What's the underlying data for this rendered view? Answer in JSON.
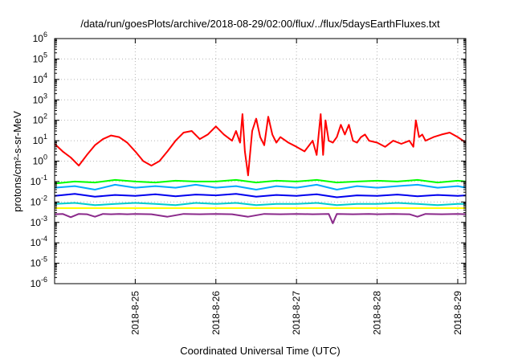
{
  "chart_data": {
    "type": "line",
    "title": "/data/run/goesPlots/archive/2018-08-29/02:00/flux/../flux/5daysEarthFluxes.txt",
    "xlabel": "Coordinated Universal Time (UTC)",
    "ylabel": "protons/cm²-s-sr-MeV",
    "y_scale": "log",
    "ylim": [
      1e-06,
      1000000.0
    ],
    "xlim": [
      24.0,
      29.1
    ],
    "grid": true,
    "y_ticks": [
      {
        "value": 1e-06,
        "base": "10",
        "exp": "-6"
      },
      {
        "value": 1e-05,
        "base": "10",
        "exp": "-5"
      },
      {
        "value": 0.0001,
        "base": "10",
        "exp": "-4"
      },
      {
        "value": 0.001,
        "base": "10",
        "exp": "-3"
      },
      {
        "value": 0.01,
        "base": "10",
        "exp": "-2"
      },
      {
        "value": 0.1,
        "base": "10",
        "exp": "-1"
      },
      {
        "value": 1.0,
        "base": "10",
        "exp": "0"
      },
      {
        "value": 10.0,
        "base": "10",
        "exp": "1"
      },
      {
        "value": 100.0,
        "base": "10",
        "exp": "2"
      },
      {
        "value": 1000.0,
        "base": "10",
        "exp": "3"
      },
      {
        "value": 10000.0,
        "base": "10",
        "exp": "4"
      },
      {
        "value": 100000.0,
        "base": "10",
        "exp": "5"
      },
      {
        "value": 1000000.0,
        "base": "10",
        "exp": "6"
      }
    ],
    "x_ticks": [
      {
        "value": 25,
        "label": "2018-8-25"
      },
      {
        "value": 26,
        "label": "2018-8-26"
      },
      {
        "value": 27,
        "label": "2018-8-27"
      },
      {
        "value": 28,
        "label": "2018-8-28"
      },
      {
        "value": 29,
        "label": "2018-8-29"
      }
    ],
    "x_unit": "day of August 2018 (UTC)",
    "series": [
      {
        "color": "#ff0000",
        "x": [
          24.0,
          24.1,
          24.2,
          24.3,
          24.4,
          24.5,
          24.6,
          24.7,
          24.8,
          24.9,
          25.0,
          25.1,
          25.2,
          25.3,
          25.4,
          25.5,
          25.6,
          25.7,
          25.8,
          25.9,
          26.0,
          26.1,
          26.2,
          26.25,
          26.3,
          26.33,
          26.36,
          26.4,
          26.45,
          26.5,
          26.55,
          26.6,
          26.65,
          26.7,
          26.75,
          26.8,
          26.9,
          27.0,
          27.1,
          27.2,
          27.25,
          27.3,
          27.33,
          27.36,
          27.4,
          27.45,
          27.5,
          27.55,
          27.6,
          27.65,
          27.7,
          27.75,
          27.8,
          27.85,
          27.9,
          28.0,
          28.1,
          28.2,
          28.3,
          28.4,
          28.45,
          28.48,
          28.52,
          28.56,
          28.6,
          28.7,
          28.8,
          28.9,
          29.0,
          29.1
        ],
        "y": [
          7,
          3,
          1.5,
          0.6,
          2,
          6,
          12,
          18,
          15,
          8,
          3,
          1,
          0.6,
          1,
          3,
          10,
          25,
          30,
          12,
          20,
          50,
          20,
          10,
          30,
          8,
          200,
          3,
          0.2,
          30,
          120,
          15,
          6,
          150,
          20,
          8,
          15,
          8,
          5,
          3,
          10,
          2,
          200,
          2,
          100,
          10,
          8,
          15,
          60,
          20,
          60,
          10,
          8,
          15,
          20,
          10,
          8,
          5,
          10,
          7,
          10,
          5,
          100,
          15,
          20,
          10,
          15,
          20,
          25,
          15,
          8
        ]
      },
      {
        "color": "#00ff00",
        "x": [
          24.0,
          24.25,
          24.5,
          24.75,
          25.0,
          25.25,
          25.5,
          25.75,
          26.0,
          26.25,
          26.5,
          26.75,
          27.0,
          27.25,
          27.5,
          27.75,
          28.0,
          28.25,
          28.5,
          28.75,
          29.0,
          29.1
        ],
        "y": [
          0.08,
          0.1,
          0.09,
          0.12,
          0.1,
          0.09,
          0.11,
          0.1,
          0.1,
          0.12,
          0.09,
          0.11,
          0.1,
          0.12,
          0.09,
          0.1,
          0.11,
          0.1,
          0.12,
          0.09,
          0.11,
          0.1
        ]
      },
      {
        "color": "#00aaff",
        "x": [
          24.0,
          24.25,
          24.5,
          24.75,
          25.0,
          25.25,
          25.5,
          25.75,
          26.0,
          26.25,
          26.5,
          26.75,
          27.0,
          27.25,
          27.5,
          27.75,
          28.0,
          28.25,
          28.5,
          28.75,
          29.0,
          29.1
        ],
        "y": [
          0.05,
          0.06,
          0.04,
          0.07,
          0.05,
          0.06,
          0.05,
          0.07,
          0.05,
          0.06,
          0.04,
          0.06,
          0.05,
          0.07,
          0.04,
          0.06,
          0.05,
          0.06,
          0.07,
          0.05,
          0.06,
          0.05
        ]
      },
      {
        "color": "#0000ee",
        "x": [
          24.0,
          24.25,
          24.5,
          24.75,
          25.0,
          25.25,
          25.5,
          25.75,
          26.0,
          26.25,
          26.5,
          26.75,
          27.0,
          27.25,
          27.5,
          27.75,
          28.0,
          28.25,
          28.5,
          28.75,
          29.0,
          29.1
        ],
        "y": [
          0.02,
          0.025,
          0.018,
          0.022,
          0.02,
          0.024,
          0.019,
          0.023,
          0.021,
          0.025,
          0.018,
          0.022,
          0.02,
          0.024,
          0.017,
          0.021,
          0.02,
          0.023,
          0.019,
          0.022,
          0.02,
          0.021
        ]
      },
      {
        "color": "#00cccc",
        "x": [
          24.0,
          24.25,
          24.5,
          24.75,
          25.0,
          25.25,
          25.5,
          25.75,
          26.0,
          26.25,
          26.5,
          26.75,
          27.0,
          27.25,
          27.5,
          27.75,
          28.0,
          28.25,
          28.5,
          28.75,
          29.0,
          29.1
        ],
        "y": [
          0.008,
          0.009,
          0.007,
          0.008,
          0.009,
          0.008,
          0.007,
          0.009,
          0.008,
          0.009,
          0.007,
          0.008,
          0.008,
          0.009,
          0.007,
          0.008,
          0.008,
          0.009,
          0.008,
          0.007,
          0.008,
          0.008
        ]
      },
      {
        "color": "#ffff00",
        "x": [
          24.0,
          24.25,
          24.5,
          24.75,
          25.0,
          25.25,
          25.5,
          25.75,
          26.0,
          26.25,
          26.5,
          26.75,
          27.0,
          27.25,
          27.5,
          27.75,
          28.0,
          28.25,
          28.5,
          28.75,
          29.0,
          29.1
        ],
        "y": [
          0.005,
          0.005,
          0.005,
          0.005,
          0.005,
          0.005,
          0.005,
          0.005,
          0.005,
          0.005,
          0.005,
          0.005,
          0.005,
          0.005,
          0.005,
          0.005,
          0.005,
          0.005,
          0.005,
          0.005,
          0.005,
          0.005
        ]
      },
      {
        "color": "#8b2a8b",
        "x": [
          24.0,
          24.1,
          24.2,
          24.3,
          24.4,
          24.5,
          24.6,
          24.7,
          24.8,
          24.9,
          25.0,
          25.2,
          25.4,
          25.6,
          25.8,
          26.0,
          26.2,
          26.4,
          26.6,
          26.8,
          27.0,
          27.2,
          27.4,
          27.45,
          27.5,
          27.7,
          27.9,
          28.0,
          28.2,
          28.4,
          28.5,
          28.6,
          28.8,
          29.0,
          29.1
        ],
        "y": [
          0.0025,
          0.0026,
          0.0018,
          0.0026,
          0.0025,
          0.0019,
          0.0026,
          0.0025,
          0.0026,
          0.0025,
          0.0026,
          0.0025,
          0.0019,
          0.0026,
          0.0025,
          0.0026,
          0.0025,
          0.0019,
          0.0026,
          0.0025,
          0.0026,
          0.0025,
          0.0026,
          0.0009,
          0.0026,
          0.0025,
          0.0026,
          0.0025,
          0.0026,
          0.0025,
          0.0019,
          0.0026,
          0.0025,
          0.0026,
          0.0025
        ]
      }
    ]
  }
}
